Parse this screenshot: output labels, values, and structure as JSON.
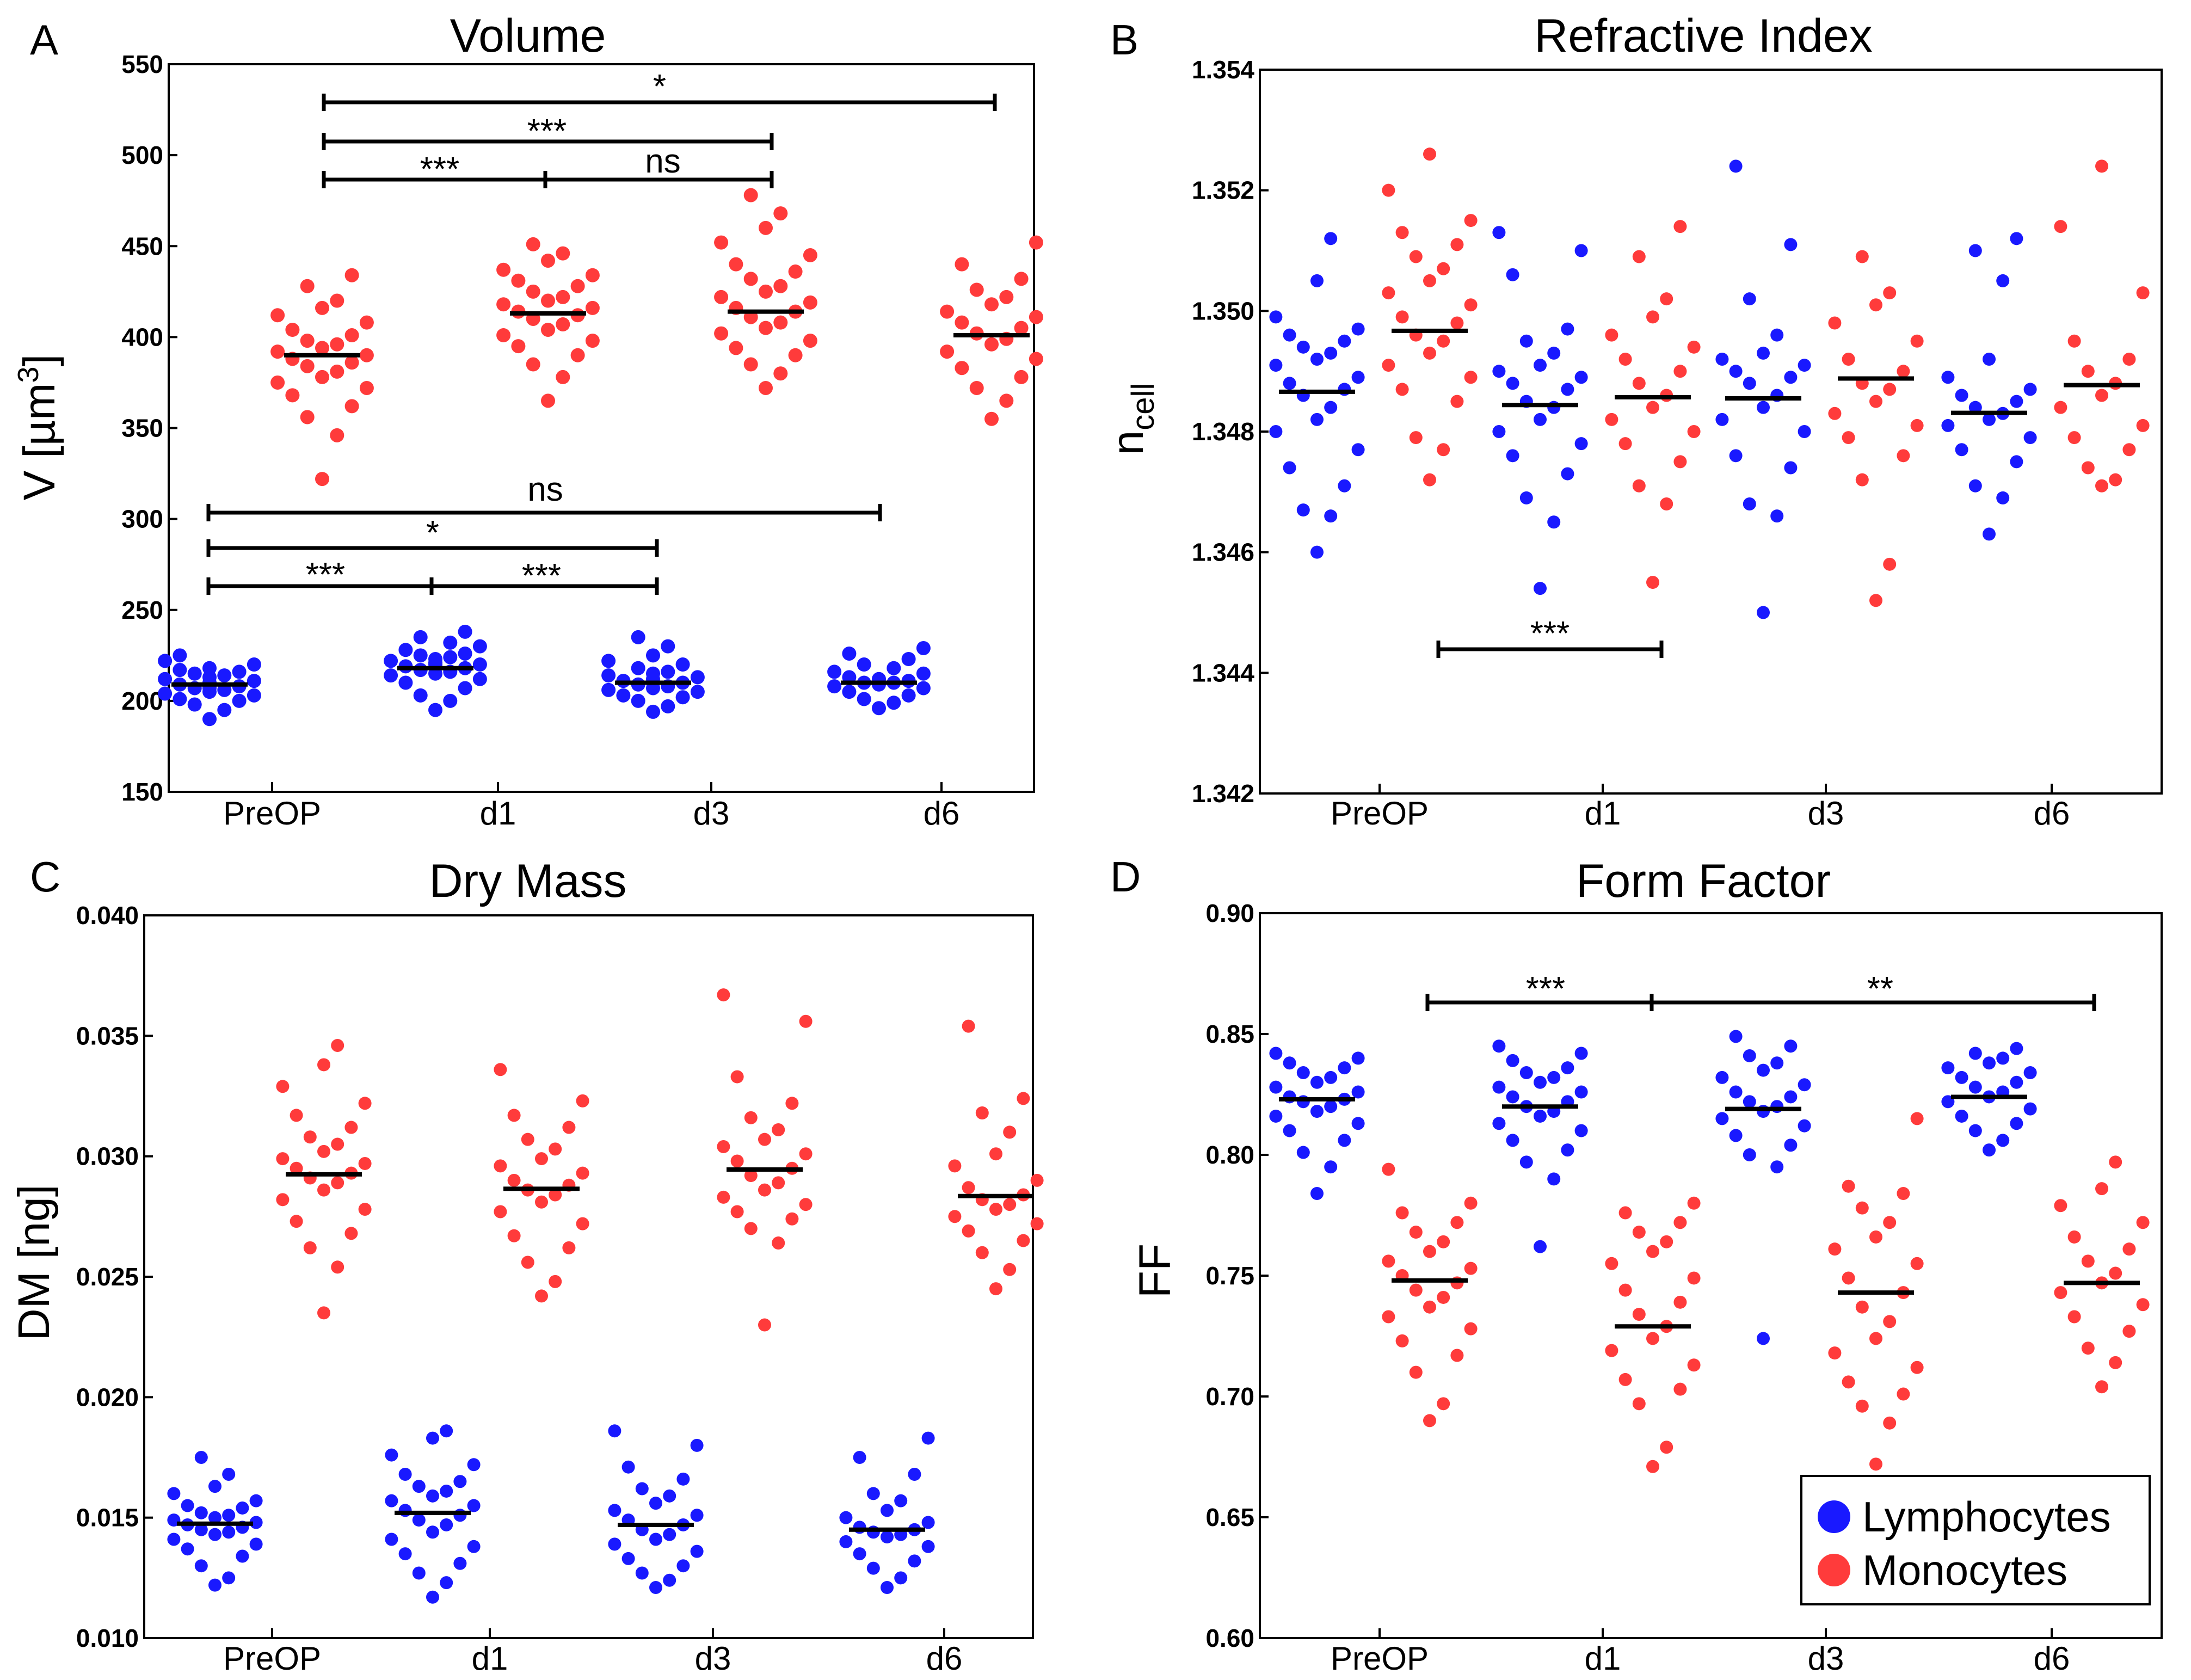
{
  "colors": {
    "lymphocytes": "#1919ff",
    "monocytes": "#ff3b3b",
    "mean": "#000000"
  },
  "chart_data": [
    {
      "type": "scatter",
      "panel": "A",
      "title": "Volume",
      "ylabel": "V [µm3]",
      "ylim": [
        150,
        550
      ],
      "yticks": [
        "150",
        "200",
        "250",
        "300",
        "350",
        "400",
        "450",
        "500",
        "550"
      ],
      "categories": [
        "PreOP",
        "d1",
        "d3",
        "d6"
      ],
      "series": [
        {
          "name": "Lymphocytes",
          "means": [
            209,
            218,
            210,
            210
          ],
          "values": [
            [
              190,
              195,
              198,
              200,
              201,
              203,
              204,
              205,
              206,
              207,
              207,
              208,
              208,
              209,
              210,
              211,
              212,
              213,
              214,
              215,
              216,
              217,
              218,
              220,
              222,
              225
            ],
            [
              195,
              200,
              203,
              207,
              210,
              212,
              214,
              215,
              216,
              217,
              218,
              219,
              220,
              220,
              221,
              222,
              223,
              224,
              225,
              226,
              228,
              230,
              232,
              235,
              238
            ],
            [
              194,
              197,
              200,
              202,
              203,
              205,
              206,
              207,
              208,
              209,
              210,
              210,
              211,
              212,
              213,
              214,
              215,
              216,
              218,
              220,
              222,
              225,
              230,
              235
            ],
            [
              196,
              199,
              201,
              203,
              205,
              207,
              208,
              209,
              210,
              210,
              211,
              212,
              213,
              215,
              216,
              218,
              220,
              223,
              226,
              229
            ]
          ]
        },
        {
          "name": "Monocytes",
          "means": [
            390,
            413,
            414,
            401
          ],
          "values": [
            [
              322,
              346,
              356,
              362,
              368,
              372,
              375,
              378,
              381,
              384,
              386,
              388,
              390,
              392,
              394,
              396,
              398,
              401,
              404,
              408,
              412,
              416,
              420,
              428,
              434
            ],
            [
              365,
              378,
              385,
              390,
              395,
              398,
              401,
              404,
              407,
              410,
              412,
              414,
              416,
              418,
              420,
              422,
              425,
              428,
              431,
              434,
              437,
              442,
              446,
              451
            ],
            [
              372,
              380,
              385,
              390,
              394,
              398,
              402,
              405,
              408,
              411,
              414,
              416,
              419,
              422,
              425,
              428,
              432,
              436,
              440,
              445,
              452,
              460,
              468,
              478
            ],
            [
              355,
              365,
              372,
              378,
              383,
              388,
              392,
              396,
              399,
              402,
              405,
              408,
              411,
              414,
              418,
              422,
              426,
              432,
              440,
              452
            ]
          ]
        }
      ],
      "annotations": [
        {
          "text": "*",
          "from": "PreOP-Monocytes",
          "to": "d6-Monocytes"
        },
        {
          "text": "***",
          "from": "PreOP-Monocytes",
          "to": "d3-Monocytes"
        },
        {
          "text": "***",
          "from": "PreOP-Monocytes",
          "to": "d1-Monocytes"
        },
        {
          "text": "ns",
          "from": "d1-Monocytes",
          "to": "d3-Monocytes"
        },
        {
          "text": "ns",
          "from": "PreOP-Lymphocytes",
          "to": "d6-Lymphocytes"
        },
        {
          "text": "*",
          "from": "PreOP-Lymphocytes",
          "to": "d3-Lymphocytes"
        },
        {
          "text": "***",
          "from": "PreOP-Lymphocytes",
          "to": "d1-Lymphocytes"
        },
        {
          "text": "***",
          "from": "d1-Lymphocytes",
          "to": "d3-Lymphocytes"
        }
      ]
    },
    {
      "type": "scatter",
      "panel": "B",
      "title": "Refractive Index",
      "ylabel": "n_cell",
      "ylim": [
        1.342,
        1.354
      ],
      "yticks": [
        "1.342",
        "1.344",
        "1.346",
        "1.348",
        "1.350",
        "1.352",
        "1.354"
      ],
      "categories": [
        "PreOP",
        "d1",
        "d3",
        "d6"
      ],
      "series": [
        {
          "name": "Lymphocytes",
          "means": [
            1.34866,
            1.34844,
            1.34855,
            1.34831
          ],
          "values": [
            [
              1.346,
              1.3466,
              1.3467,
              1.3471,
              1.3474,
              1.3477,
              1.348,
              1.3482,
              1.3484,
              1.3486,
              1.3487,
              1.3488,
              1.3489,
              1.3491,
              1.3492,
              1.3493,
              1.3494,
              1.3495,
              1.3496,
              1.3497,
              1.3499,
              1.3505,
              1.3512
            ],
            [
              1.3454,
              1.3465,
              1.3469,
              1.3473,
              1.3476,
              1.3478,
              1.348,
              1.3482,
              1.3484,
              1.3485,
              1.3487,
              1.3488,
              1.3489,
              1.349,
              1.3491,
              1.3493,
              1.3495,
              1.3497,
              1.3506,
              1.351,
              1.3513
            ],
            [
              1.345,
              1.3466,
              1.3468,
              1.3474,
              1.3476,
              1.348,
              1.3482,
              1.3484,
              1.3486,
              1.3488,
              1.3489,
              1.349,
              1.3491,
              1.3492,
              1.3493,
              1.3496,
              1.3502,
              1.3511,
              1.3524
            ],
            [
              1.3463,
              1.3469,
              1.3471,
              1.3475,
              1.3477,
              1.3479,
              1.3481,
              1.3482,
              1.3483,
              1.3484,
              1.3485,
              1.3486,
              1.3487,
              1.3489,
              1.3492,
              1.3505,
              1.351,
              1.3512
            ]
          ]
        },
        {
          "name": "Monocytes",
          "means": [
            1.34967,
            1.34857,
            1.34888,
            1.34877
          ],
          "values": [
            [
              1.3472,
              1.3477,
              1.3479,
              1.3485,
              1.3487,
              1.3489,
              1.3491,
              1.3493,
              1.3495,
              1.3496,
              1.3498,
              1.3499,
              1.3501,
              1.3503,
              1.3505,
              1.3507,
              1.3509,
              1.3511,
              1.3513,
              1.3515,
              1.352,
              1.3526
            ],
            [
              1.3455,
              1.3468,
              1.3471,
              1.3475,
              1.3478,
              1.348,
              1.3482,
              1.3484,
              1.3486,
              1.3488,
              1.349,
              1.3492,
              1.3494,
              1.3496,
              1.3499,
              1.3502,
              1.3509,
              1.3514
            ],
            [
              1.3452,
              1.3458,
              1.3472,
              1.3476,
              1.3479,
              1.3481,
              1.3483,
              1.3485,
              1.3487,
              1.3488,
              1.349,
              1.3492,
              1.3495,
              1.3498,
              1.3501,
              1.3503,
              1.3509
            ],
            [
              1.3471,
              1.3472,
              1.3474,
              1.3477,
              1.3479,
              1.3481,
              1.3484,
              1.3486,
              1.3488,
              1.349,
              1.3492,
              1.3495,
              1.3503,
              1.3514,
              1.3524
            ]
          ]
        }
      ],
      "annotations": [
        {
          "text": "***",
          "from": "PreOP-Monocytes",
          "to": "d1-Monocytes"
        }
      ]
    },
    {
      "type": "scatter",
      "panel": "C",
      "title": "Dry Mass",
      "ylabel": "DM [ng]",
      "ylim": [
        0.01,
        0.04
      ],
      "yticks": [
        "0.010",
        "0.015",
        "0.020",
        "0.025",
        "0.030",
        "0.035",
        "0.040"
      ],
      "categories": [
        "PreOP",
        "d1",
        "d3",
        "d6"
      ],
      "series": [
        {
          "name": "Lymphocytes",
          "means": [
            0.01475,
            0.0152,
            0.0147,
            0.0145
          ],
          "values": [
            [
              0.0122,
              0.0125,
              0.013,
              0.0134,
              0.0137,
              0.0139,
              0.0141,
              0.0143,
              0.0144,
              0.0145,
              0.0146,
              0.0147,
              0.0148,
              0.0149,
              0.015,
              0.0151,
              0.0152,
              0.0154,
              0.0155,
              0.0157,
              0.016,
              0.0163,
              0.0168,
              0.0175
            ],
            [
              0.0117,
              0.0123,
              0.0127,
              0.0131,
              0.0135,
              0.0138,
              0.0141,
              0.0144,
              0.0147,
              0.0149,
              0.0151,
              0.0153,
              0.0155,
              0.0157,
              0.0159,
              0.0161,
              0.0163,
              0.0165,
              0.0168,
              0.0172,
              0.0176,
              0.0183,
              0.0186
            ],
            [
              0.0121,
              0.0124,
              0.0127,
              0.013,
              0.0133,
              0.0136,
              0.0139,
              0.0141,
              0.0143,
              0.0145,
              0.0147,
              0.0149,
              0.0151,
              0.0153,
              0.0156,
              0.0159,
              0.0162,
              0.0166,
              0.0171,
              0.018,
              0.0186
            ],
            [
              0.0121,
              0.0125,
              0.0129,
              0.0132,
              0.0135,
              0.0138,
              0.014,
              0.0142,
              0.0143,
              0.0144,
              0.0145,
              0.0146,
              0.0148,
              0.015,
              0.0153,
              0.0157,
              0.016,
              0.0168,
              0.0175,
              0.0183
            ]
          ]
        },
        {
          "name": "Monocytes",
          "means": [
            0.02925,
            0.02865,
            0.02945,
            0.02835
          ],
          "values": [
            [
              0.0235,
              0.0254,
              0.0262,
              0.0268,
              0.0273,
              0.0278,
              0.0282,
              0.0286,
              0.0289,
              0.0291,
              0.0293,
              0.0295,
              0.0297,
              0.0299,
              0.0302,
              0.0305,
              0.0308,
              0.0312,
              0.0317,
              0.0322,
              0.0329,
              0.0338,
              0.0346
            ],
            [
              0.0242,
              0.0248,
              0.0256,
              0.0262,
              0.0267,
              0.0272,
              0.0277,
              0.0281,
              0.0284,
              0.0286,
              0.0288,
              0.029,
              0.0293,
              0.0296,
              0.0299,
              0.0303,
              0.0307,
              0.0312,
              0.0317,
              0.0323,
              0.0336
            ],
            [
              0.023,
              0.0264,
              0.027,
              0.0274,
              0.0277,
              0.028,
              0.0283,
              0.0286,
              0.0289,
              0.0292,
              0.0295,
              0.0298,
              0.0301,
              0.0304,
              0.0307,
              0.0311,
              0.0316,
              0.0322,
              0.0333,
              0.0356,
              0.0367
            ],
            [
              0.0245,
              0.0253,
              0.026,
              0.0265,
              0.0269,
              0.0272,
              0.0275,
              0.0278,
              0.028,
              0.0282,
              0.0284,
              0.0287,
              0.029,
              0.0296,
              0.0301,
              0.031,
              0.0318,
              0.0324,
              0.0354
            ]
          ]
        }
      ],
      "annotations": []
    },
    {
      "type": "scatter",
      "panel": "D",
      "title": "Form Factor",
      "ylabel": "FF",
      "ylim": [
        0.6,
        0.9
      ],
      "yticks": [
        "0.60",
        "0.65",
        "0.70",
        "0.75",
        "0.80",
        "0.85",
        "0.90"
      ],
      "categories": [
        "PreOP",
        "d1",
        "d3",
        "d6"
      ],
      "series": [
        {
          "name": "Lymphocytes",
          "means": [
            0.823,
            0.82,
            0.819,
            0.824
          ],
          "values": [
            [
              0.784,
              0.795,
              0.801,
              0.806,
              0.81,
              0.813,
              0.816,
              0.818,
              0.82,
              0.822,
              0.823,
              0.824,
              0.826,
              0.828,
              0.83,
              0.832,
              0.834,
              0.836,
              0.838,
              0.84,
              0.842
            ],
            [
              0.762,
              0.79,
              0.797,
              0.802,
              0.806,
              0.81,
              0.813,
              0.816,
              0.818,
              0.82,
              0.822,
              0.824,
              0.826,
              0.828,
              0.83,
              0.832,
              0.834,
              0.836,
              0.839,
              0.842,
              0.845
            ],
            [
              0.724,
              0.795,
              0.8,
              0.804,
              0.808,
              0.812,
              0.815,
              0.818,
              0.82,
              0.822,
              0.824,
              0.826,
              0.829,
              0.832,
              0.835,
              0.838,
              0.841,
              0.845,
              0.849
            ],
            [
              0.802,
              0.806,
              0.81,
              0.813,
              0.816,
              0.819,
              0.822,
              0.824,
              0.826,
              0.828,
              0.83,
              0.832,
              0.834,
              0.836,
              0.838,
              0.84,
              0.842,
              0.844
            ]
          ]
        },
        {
          "name": "Monocytes",
          "means": [
            0.748,
            0.729,
            0.743,
            0.747
          ],
          "values": [
            [
              0.69,
              0.697,
              0.71,
              0.717,
              0.723,
              0.728,
              0.733,
              0.737,
              0.741,
              0.744,
              0.747,
              0.75,
              0.753,
              0.756,
              0.76,
              0.764,
              0.768,
              0.772,
              0.776,
              0.78,
              0.794
            ],
            [
              0.671,
              0.679,
              0.697,
              0.703,
              0.707,
              0.713,
              0.719,
              0.724,
              0.729,
              0.734,
              0.739,
              0.744,
              0.749,
              0.755,
              0.76,
              0.764,
              0.768,
              0.772,
              0.776,
              0.78
            ],
            [
              0.672,
              0.689,
              0.696,
              0.701,
              0.706,
              0.712,
              0.718,
              0.724,
              0.731,
              0.737,
              0.743,
              0.749,
              0.755,
              0.761,
              0.766,
              0.772,
              0.778,
              0.784,
              0.787,
              0.815
            ],
            [
              0.704,
              0.714,
              0.72,
              0.727,
              0.733,
              0.738,
              0.743,
              0.747,
              0.751,
              0.756,
              0.761,
              0.766,
              0.772,
              0.779,
              0.786,
              0.797
            ]
          ]
        }
      ],
      "annotations": [
        {
          "text": "***",
          "from": "PreOP-Monocytes",
          "to": "d1-Monocytes"
        },
        {
          "text": "**",
          "from": "d1-Monocytes",
          "to": "d6-Monocytes"
        }
      ]
    }
  ],
  "legend": {
    "items": [
      {
        "label": "Lymphocytes"
      },
      {
        "label": "Monocytes"
      }
    ],
    "placement": "bottom-right of panel D"
  }
}
